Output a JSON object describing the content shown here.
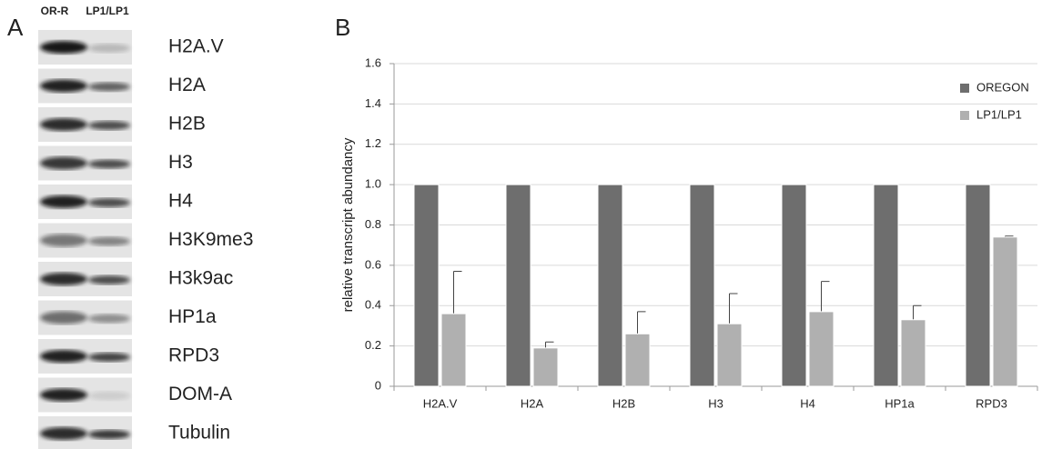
{
  "panel_a": {
    "label": "A",
    "column_headers": [
      "OR-R",
      "LP1/LP1"
    ],
    "rows": [
      "H2A.V",
      "H2A",
      "H2B",
      "H3",
      "H4",
      "H3K9me3",
      "H3k9ac",
      "HP1a",
      "RPD3",
      "DOM-A",
      "Tubulin"
    ]
  },
  "panel_b_label": "B",
  "chart_data": {
    "type": "bar",
    "y_label": "relative transcript abundancy",
    "categories": [
      "H2A.V",
      "H2A",
      "H2B",
      "H3",
      "H4",
      "HP1a",
      "RPD3"
    ],
    "series": [
      {
        "name": "OREGON",
        "color": "#6e6e6e",
        "values": [
          1,
          1,
          1,
          1,
          1,
          1,
          1
        ]
      },
      {
        "name": "LP1/LP1",
        "color": "#b0b0b0",
        "values": [
          0.36,
          0.19,
          0.26,
          0.31,
          0.37,
          0.33,
          0.74
        ],
        "errors": [
          0.21,
          0.03,
          0.11,
          0.15,
          0.15,
          0.07,
          0.005
        ]
      }
    ],
    "ylim": [
      0,
      1.6
    ],
    "yticks": [
      0,
      0.2,
      0.4,
      0.6,
      0.8,
      {
        "value": 1,
        "label": "1.0"
      },
      1.2,
      1.4,
      1.6
    ],
    "grid": true,
    "legend": "top-right"
  }
}
